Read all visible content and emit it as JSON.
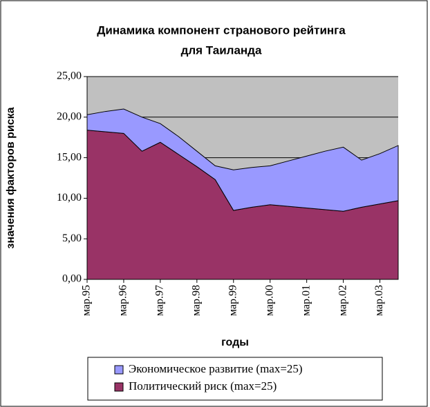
{
  "chart_data": {
    "type": "stacked_area",
    "title": [
      "Динамика компонент странового рейтинга",
      "для Таиланда"
    ],
    "y_label": "значения факторов риска",
    "x_label": "годы",
    "categories": [
      "мар.95",
      null,
      "мар.96",
      null,
      "мар.97",
      null,
      "мар.98",
      null,
      "мар.99",
      null,
      "мар.00",
      null,
      "мар.01",
      null,
      "мар.02",
      null,
      "мар.03",
      null
    ],
    "series": [
      {
        "name": "Экономическое развитие (max=25)",
        "color": "#9999ff",
        "values": [
          1.9,
          2.5,
          3.0,
          4.2,
          2.3,
          2.2,
          1.9,
          1.7,
          5.0,
          4.9,
          4.8,
          5.6,
          6.4,
          7.2,
          7.9,
          5.8,
          6.2,
          6.8
        ]
      },
      {
        "name": "Политический риск (max=25)",
        "color": "#993366",
        "values": [
          18.4,
          18.2,
          18.0,
          15.8,
          16.9,
          15.4,
          13.9,
          12.3,
          8.5,
          8.9,
          9.2,
          9.0,
          8.8,
          8.6,
          8.4,
          8.9,
          9.3,
          9.7
        ]
      }
    ],
    "ylim": [
      0,
      25
    ],
    "yticks": [
      {
        "value": 0,
        "label": "0,00"
      },
      {
        "value": 5,
        "label": "5,00"
      },
      {
        "value": 10,
        "label": "10,00"
      },
      {
        "value": 15,
        "label": "15,00"
      },
      {
        "value": 20,
        "label": "20,00"
      },
      {
        "value": 25,
        "label": "25,00"
      }
    ],
    "grid": true,
    "plot_background": "#c0c0c0"
  }
}
